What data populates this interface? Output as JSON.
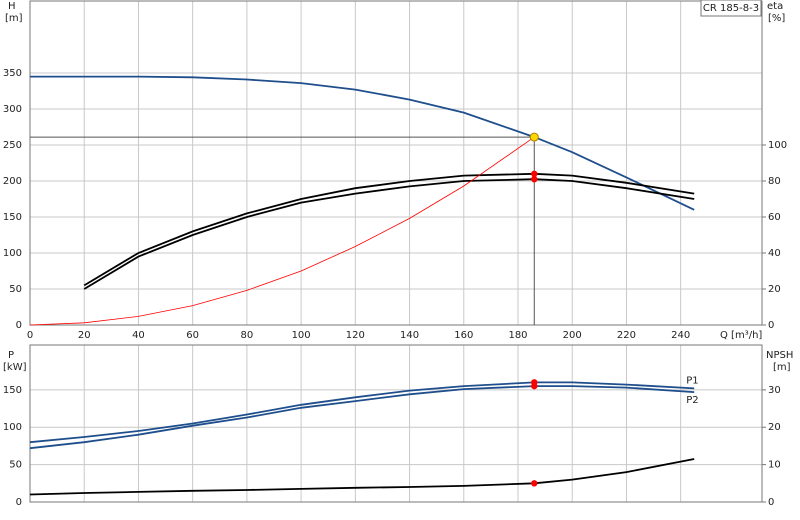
{
  "model": "CR 185-8-3",
  "chart_data": [
    {
      "type": "line",
      "y_label": "H",
      "y_unit": "[m]",
      "y2_label": "eta",
      "y2_unit": "[%]",
      "x_label": "Q [m³/h]",
      "x": [
        0,
        20,
        40,
        60,
        80,
        100,
        120,
        140,
        160,
        186,
        200,
        220,
        245
      ],
      "xlim": [
        0,
        270
      ],
      "xticks": [
        0,
        20,
        40,
        60,
        80,
        100,
        120,
        140,
        160,
        180,
        200,
        220,
        240
      ],
      "ylim": [
        0,
        450
      ],
      "yticks": [
        0,
        50,
        100,
        150,
        200,
        250,
        300,
        350
      ],
      "y2lim": [
        0,
        180
      ],
      "y2ticks": [
        0,
        20,
        40,
        60,
        80,
        100
      ],
      "grid": true,
      "series": [
        {
          "color": "#1f4e8c",
          "values": [
            345,
            345,
            345,
            344,
            341,
            336,
            327,
            313,
            295,
            261,
            240,
            205,
            160
          ]
        },
        {
          "color": "#000000",
          "axis": "y2",
          "values": [
            null,
            22,
            40,
            52,
            62,
            70,
            76,
            80,
            83,
            84,
            83,
            79,
            73
          ]
        },
        {
          "color": "#000000",
          "axis": "y2",
          "values": [
            null,
            20,
            38,
            50,
            60,
            68,
            73,
            77,
            80,
            81,
            80,
            76,
            70
          ]
        },
        {
          "color": "#ff0000",
          "values": [
            0,
            3,
            12,
            27,
            48,
            75,
            109,
            148,
            193,
            261,
            null,
            null,
            null
          ]
        }
      ],
      "operating_point": {
        "x": 186,
        "y": 261,
        "color": "#ffd700"
      }
    },
    {
      "type": "line",
      "y_label": "P",
      "y_unit": "[kW]",
      "y2_label": "NPSH",
      "y2_unit": "[m]",
      "x": [
        0,
        20,
        40,
        60,
        80,
        100,
        120,
        140,
        160,
        186,
        200,
        220,
        245
      ],
      "ylim": [
        0,
        210
      ],
      "yticks": [
        0,
        50,
        100,
        150
      ],
      "y2lim": [
        0,
        42
      ],
      "y2ticks": [
        0,
        10,
        20,
        30
      ],
      "grid": true,
      "series": [
        {
          "name": "P1",
          "color": "#1f4e8c",
          "values": [
            80,
            87,
            95,
            105,
            117,
            130,
            140,
            149,
            155,
            160,
            160,
            157,
            152
          ]
        },
        {
          "name": "P2",
          "color": "#1f4e8c",
          "values": [
            72,
            80,
            90,
            102,
            113,
            126,
            135,
            144,
            151,
            155,
            155,
            153,
            147
          ]
        },
        {
          "color": "#000000",
          "axis": "y2",
          "values": [
            2,
            2.4,
            2.7,
            3,
            3.2,
            3.5,
            3.8,
            4,
            4.3,
            5,
            6,
            8,
            11.5
          ]
        }
      ]
    }
  ]
}
